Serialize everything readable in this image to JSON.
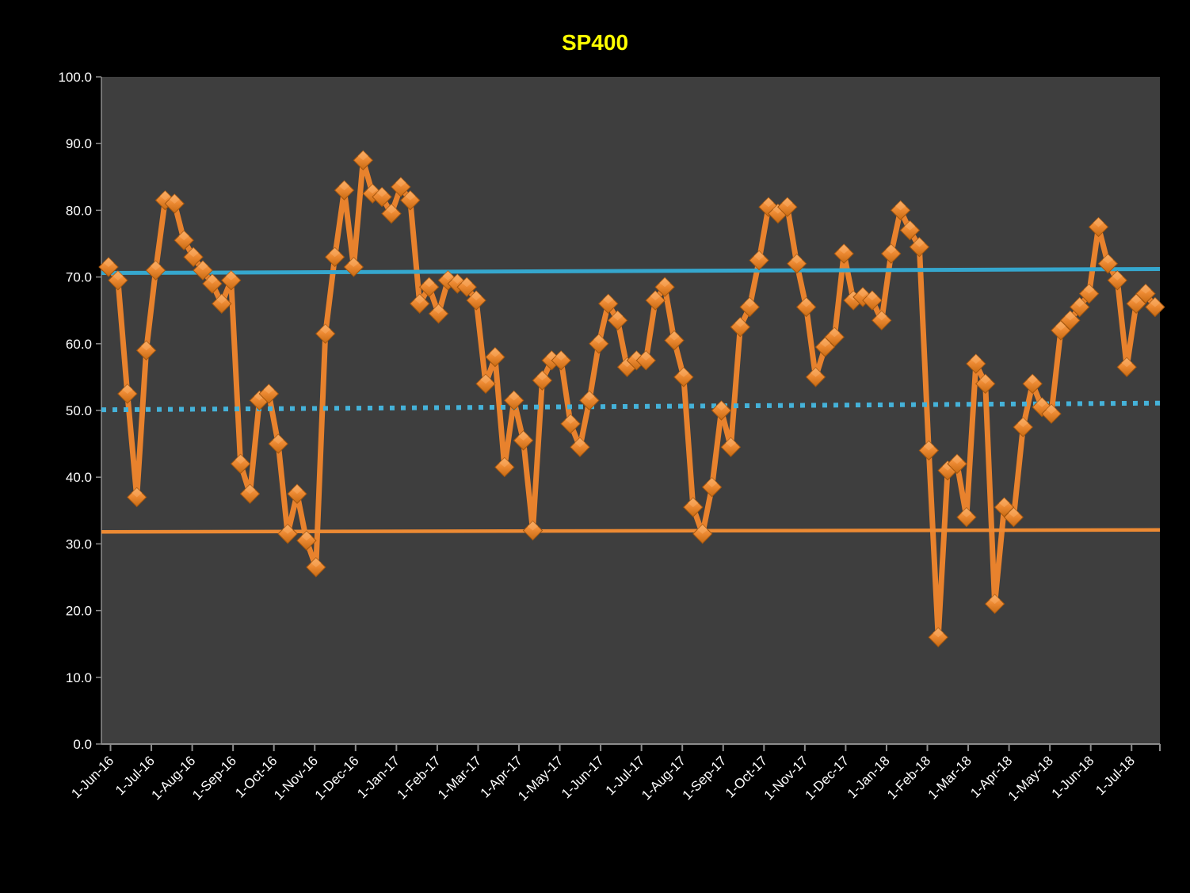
{
  "chart_data": {
    "type": "line",
    "title": "SP400",
    "title_color": "#FFFF00",
    "legend_position": "none",
    "gridlines": "off",
    "page_bg": "#000000",
    "plot_bg": "#3E3E3E",
    "axis_text_color": "#FFFFFF",
    "axis_line_color": "#8C8C8C",
    "series_line_color": "#E8822D",
    "marker_shape": "3d-diamond",
    "marker_color_top": "#F9AC62",
    "marker_color_bottom": "#C76A12",
    "x_interval": "weekly",
    "x_first_point_label": "1-Jun-16",
    "x_tick_labels": [
      "1-Jun-16",
      "1-Jul-16",
      "1-Aug-16",
      "1-Sep-16",
      "1-Oct-16",
      "1-Nov-16",
      "1-Dec-16",
      "1-Jan-17",
      "1-Feb-17",
      "1-Mar-17",
      "1-Apr-17",
      "1-May-17",
      "1-Jun-17",
      "1-Jul-17",
      "1-Aug-17",
      "1-Sep-17",
      "1-Oct-17",
      "1-Nov-17",
      "1-Dec-17",
      "1-Jan-18",
      "1-Feb-18",
      "1-Mar-18",
      "1-Apr-18",
      "1-May-18",
      "1-Jun-18",
      "1-Jul-18"
    ],
    "y_tick_labels": [
      "0.0",
      "10.0",
      "20.0",
      "30.0",
      "40.0",
      "50.0",
      "60.0",
      "70.0",
      "80.0",
      "90.0",
      "100.0"
    ],
    "ylim": [
      0,
      100
    ],
    "values": [
      71.5,
      69.5,
      52.5,
      37,
      59,
      71,
      81.5,
      81,
      75.5,
      73,
      71,
      69,
      66,
      69.5,
      42,
      37.5,
      51.5,
      52.5,
      45,
      31.5,
      37.5,
      30.5,
      26.5,
      61.5,
      73,
      83,
      71.5,
      87.5,
      82.5,
      82,
      79.5,
      83.5,
      81.5,
      66,
      68.5,
      64.5,
      69.5,
      69,
      68.5,
      66.5,
      54,
      58,
      41.5,
      51.5,
      45.5,
      32,
      54.5,
      57.5,
      57.5,
      48,
      44.5,
      51.5,
      60,
      66,
      63.5,
      56.5,
      57.5,
      57.5,
      66.5,
      68.5,
      60.5,
      55,
      35.5,
      31.5,
      38.5,
      50,
      44.5,
      62.5,
      65.5,
      72.5,
      80.5,
      79.5,
      80.5,
      72,
      65.5,
      55,
      59.5,
      61,
      73.5,
      66.5,
      67,
      66.5,
      63.5,
      73.5,
      80,
      77,
      74.5,
      44,
      16,
      41,
      42,
      34,
      57,
      54,
      21,
      35.5,
      34,
      47.5,
      54,
      50.5,
      49.5,
      62,
      63.5,
      65.5,
      67.5,
      77.5,
      72,
      69.5,
      56.5,
      66,
      67.5,
      65.5
    ],
    "reference_lines": [
      {
        "name": "upper-band-line",
        "style": "solid",
        "color": "#35A7CE",
        "width": 5,
        "y_start": 70.6,
        "y_end": 71.2
      },
      {
        "name": "mid-band-line",
        "style": "dotted",
        "color": "#45B2D9",
        "width": 6,
        "y_start": 50.1,
        "y_end": 51.1
      },
      {
        "name": "lower-band-line",
        "style": "solid",
        "color": "#ED8A33",
        "width": 4.5,
        "y_start": 31.8,
        "y_end": 32.1
      }
    ]
  }
}
